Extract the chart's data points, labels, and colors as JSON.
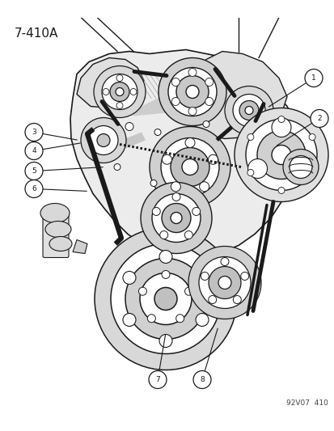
{
  "title_label": "7-410A",
  "footer_label": "92V07  410",
  "background_color": "#ffffff",
  "line_color": "#1a1a1a",
  "gray_light": "#d8d8d8",
  "gray_mid": "#b8b8b8",
  "gray_dark": "#888888",
  "callouts": [
    1,
    2,
    3,
    4,
    5,
    6,
    7,
    8
  ],
  "fig_width": 4.14,
  "fig_height": 5.33,
  "dpi": 100,
  "img_extent": [
    0,
    414,
    0,
    490
  ]
}
